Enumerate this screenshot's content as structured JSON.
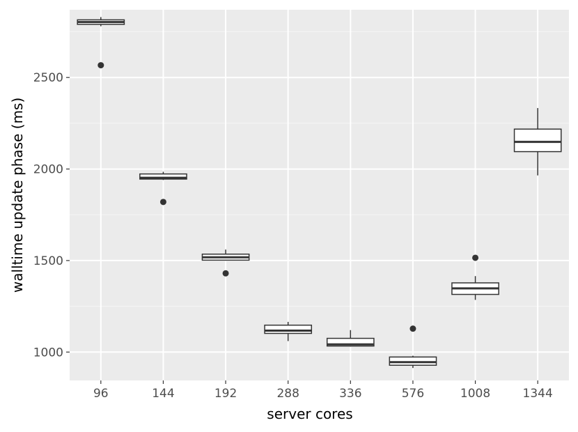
{
  "chart_data": {
    "type": "boxplot",
    "xlabel": "server cores",
    "ylabel": "walltime update phase (ms)",
    "categories": [
      "96",
      "144",
      "192",
      "288",
      "336",
      "576",
      "1008",
      "1344"
    ],
    "ylim": [
      845,
      2870
    ],
    "y_ticks": [
      1000,
      1500,
      2000,
      2500
    ],
    "grid": true,
    "legend": "none",
    "colors": {
      "panel": "#ebebeb",
      "grid_major": "#ffffff",
      "grid_minor": "#f5f5f5",
      "box_fill": "#ffffff",
      "box_stroke": "#333333",
      "tick_text": "#4d4d4d"
    },
    "boxes": [
      {
        "category": "96",
        "whisker_low": 2780,
        "q1": 2790,
        "median": 2803,
        "q3": 2815,
        "whisker_high": 2830,
        "outliers": [
          2567
        ]
      },
      {
        "category": "144",
        "whisker_low": 1940,
        "q1": 1945,
        "median": 1952,
        "q3": 1973,
        "whisker_high": 1985,
        "outliers": [
          1820
        ]
      },
      {
        "category": "192",
        "whisker_low": 1500,
        "q1": 1502,
        "median": 1518,
        "q3": 1535,
        "whisker_high": 1560,
        "outliers": [
          1430
        ]
      },
      {
        "category": "288",
        "whisker_low": 1060,
        "q1": 1102,
        "median": 1117,
        "q3": 1147,
        "whisker_high": 1165,
        "outliers": []
      },
      {
        "category": "336",
        "whisker_low": 1030,
        "q1": 1033,
        "median": 1042,
        "q3": 1075,
        "whisker_high": 1120,
        "outliers": []
      },
      {
        "category": "576",
        "whisker_low": 913,
        "q1": 928,
        "median": 945,
        "q3": 973,
        "whisker_high": 980,
        "outliers": [
          1128
        ]
      },
      {
        "category": "1008",
        "whisker_low": 1285,
        "q1": 1315,
        "median": 1348,
        "q3": 1378,
        "whisker_high": 1415,
        "outliers": [
          1515
        ]
      },
      {
        "category": "1344",
        "whisker_low": 1965,
        "q1": 2095,
        "median": 2148,
        "q3": 2218,
        "whisker_high": 2333,
        "outliers": []
      }
    ]
  }
}
